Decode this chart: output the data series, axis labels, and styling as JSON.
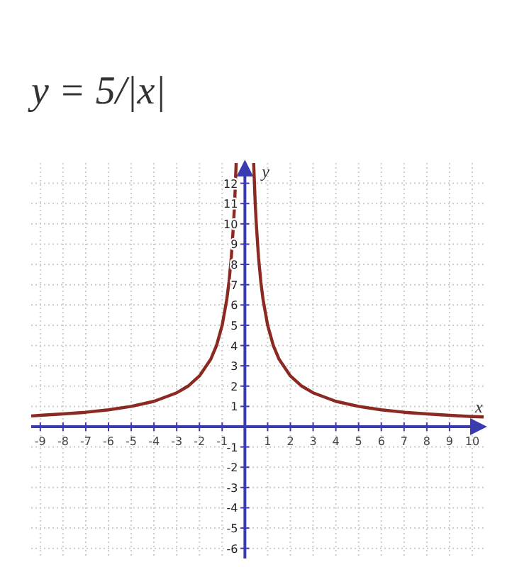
{
  "chart_data": {
    "type": "line",
    "title": "y = 5/|x|",
    "xlabel": "x",
    "ylabel": "y",
    "xlim": [
      -9.4,
      10.5
    ],
    "ylim": [
      -6.5,
      13
    ],
    "xticks": [
      -9,
      -8,
      -7,
      -6,
      -5,
      -4,
      -3,
      -2,
      -1,
      1,
      2,
      3,
      4,
      5,
      6,
      7,
      8,
      9,
      10
    ],
    "yticks": [
      -6,
      -5,
      -4,
      -3,
      -2,
      -1,
      1,
      2,
      3,
      4,
      5,
      6,
      7,
      8,
      9,
      10,
      11,
      12
    ],
    "grid": true,
    "marker": "none",
    "line_style": "solid",
    "series": [
      {
        "color": "#8b2a22",
        "x": [
          -9.4,
          -9,
          -8,
          -7,
          -6,
          -5,
          -4,
          -3,
          -2.5,
          -2,
          -1.5,
          -1.25,
          -1,
          -0.8,
          -0.7,
          -0.6,
          -0.5,
          -0.45,
          -0.385
        ],
        "values": [
          0.53,
          0.56,
          0.63,
          0.71,
          0.83,
          1,
          1.25,
          1.67,
          2,
          2.5,
          3.33,
          4,
          5,
          6.25,
          7.14,
          8.33,
          10,
          11.1,
          13
        ]
      },
      {
        "color": "#8b2a22",
        "x": [
          0.385,
          0.45,
          0.5,
          0.6,
          0.7,
          0.8,
          1,
          1.25,
          1.5,
          2,
          2.5,
          3,
          4,
          5,
          6,
          7,
          8,
          9,
          10,
          10.5
        ],
        "values": [
          13,
          11.1,
          10,
          8.33,
          7.14,
          6.25,
          5,
          4,
          3.33,
          2.5,
          2,
          1.67,
          1.25,
          1,
          0.83,
          0.71,
          0.63,
          0.56,
          0.5,
          0.48
        ]
      }
    ]
  }
}
